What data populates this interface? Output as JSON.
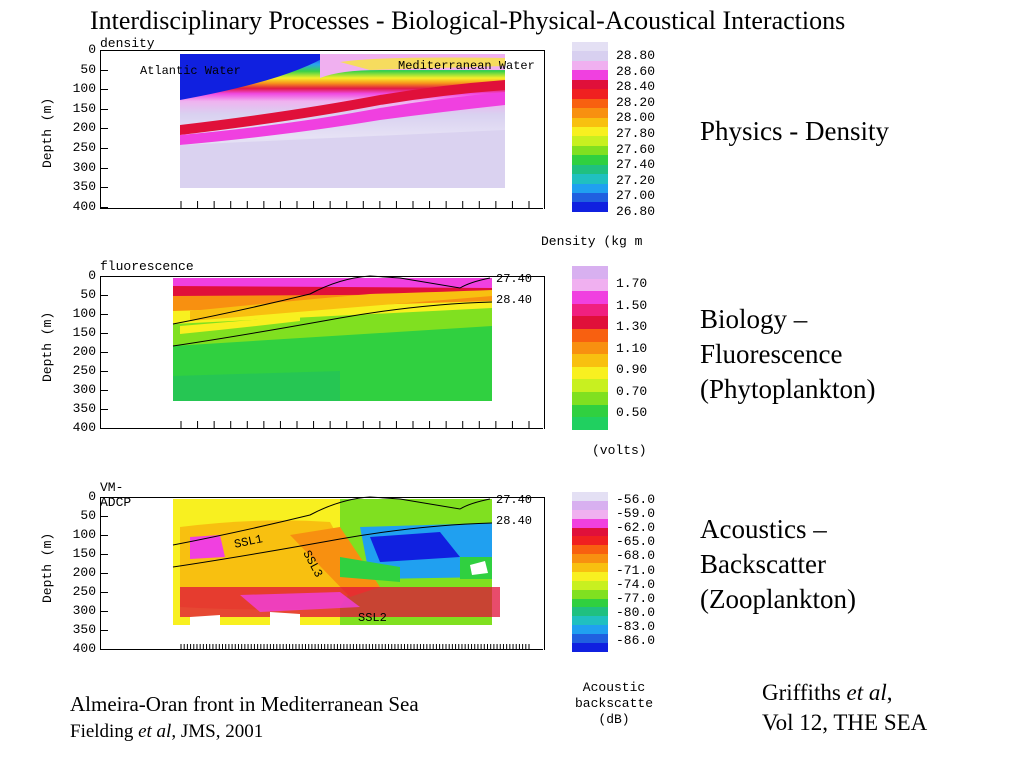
{
  "title": "Interdisciplinary Processes - Biological-Physical-Acoustical Interactions",
  "panels": [
    {
      "id": "density",
      "title": "density",
      "ylabel": "Depth (m)",
      "yticks": [
        "0",
        "50",
        "100",
        "150",
        "200",
        "250",
        "300",
        "350",
        "400"
      ],
      "annotations": [
        "Atlantic Water",
        "Mediterranean Water"
      ],
      "colorbar": [
        "28.80",
        "28.60",
        "28.40",
        "28.20",
        "28.00",
        "27.80",
        "27.60",
        "27.40",
        "27.20",
        "27.00",
        "26.80"
      ],
      "unit": "Density (kg m",
      "side": [
        "Physics - Density"
      ]
    },
    {
      "id": "fluorescence",
      "title": "fluorescence",
      "ylabel": "Depth (m)",
      "yticks": [
        "0",
        "50",
        "100",
        "150",
        "200",
        "250",
        "300",
        "350",
        "400"
      ],
      "contours": [
        "27.40",
        "28.40"
      ],
      "colorbar": [
        "1.70",
        "1.50",
        "1.30",
        "1.10",
        "0.90",
        "0.70",
        "0.50"
      ],
      "unit": "(volts)",
      "side": [
        "Biology –",
        "Fluorescence",
        "(Phytoplankton)"
      ]
    },
    {
      "id": "adcp",
      "title": "VM-ADCP",
      "ylabel": "Depth (m)",
      "yticks": [
        "0",
        "50",
        "100",
        "150",
        "200",
        "250",
        "300",
        "350",
        "400"
      ],
      "contours": [
        "27.40",
        "28.40"
      ],
      "annotations": [
        "SSL1",
        "SSL3",
        "SSL2"
      ],
      "colorbar": [
        "-56.0",
        "-59.0",
        "-62.0",
        "-65.0",
        "-68.0",
        "-71.0",
        "-74.0",
        "-77.0",
        "-80.0",
        "-83.0",
        "-86.0"
      ],
      "unit_lines": [
        "Acoustic",
        "backscatte",
        "(dB)"
      ],
      "side": [
        "Acoustics –",
        "Backscatter",
        "(Zooplankton)"
      ]
    }
  ],
  "caption": {
    "line1": "Almeira-Oran front in Mediterranean Sea",
    "line2_pre": "Fielding ",
    "line2_em": "et al",
    "line2_post": ", JMS, 2001"
  },
  "reference": {
    "line1_pre": "Griffiths ",
    "line1_em": "et al",
    "line1_post": ",",
    "line2": "Vol 12, THE SEA"
  },
  "colors": {
    "deep_blue": "#1020e0",
    "lavender": "#d8d0f0",
    "magenta": "#f040e0",
    "red": "#e0103a",
    "yellow": "#f8f020",
    "green": "#30d040"
  }
}
